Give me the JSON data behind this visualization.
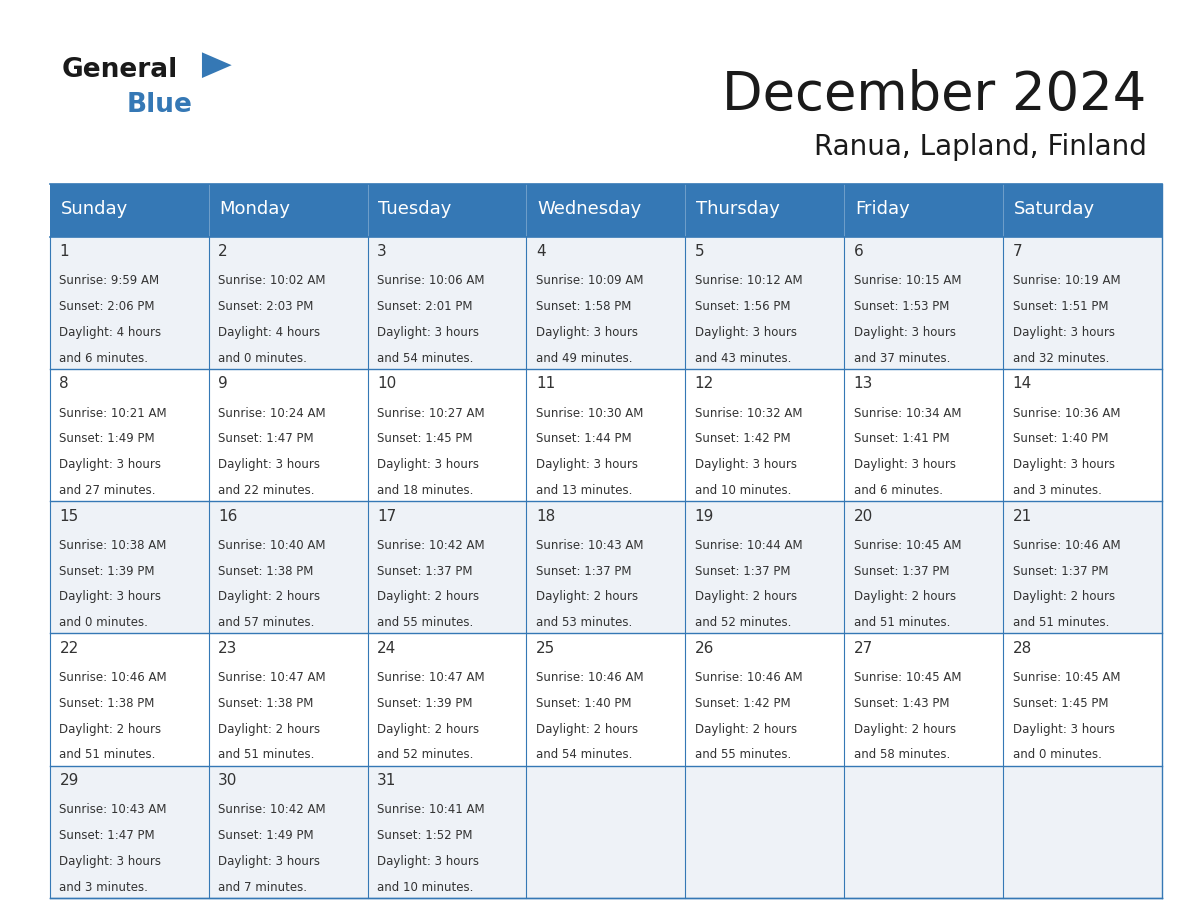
{
  "title": "December 2024",
  "subtitle": "Ranua, Lapland, Finland",
  "header_color": "#3578b5",
  "header_text_color": "#ffffff",
  "row_bg_odd": "#eef2f7",
  "row_bg_even": "#ffffff",
  "border_color": "#3578b5",
  "text_color": "#333333",
  "days_of_week": [
    "Sunday",
    "Monday",
    "Tuesday",
    "Wednesday",
    "Thursday",
    "Friday",
    "Saturday"
  ],
  "weeks": [
    [
      {
        "day": 1,
        "sunrise": "9:59 AM",
        "sunset": "2:06 PM",
        "daylight": "4 hours and 6 minutes."
      },
      {
        "day": 2,
        "sunrise": "10:02 AM",
        "sunset": "2:03 PM",
        "daylight": "4 hours and 0 minutes."
      },
      {
        "day": 3,
        "sunrise": "10:06 AM",
        "sunset": "2:01 PM",
        "daylight": "3 hours and 54 minutes."
      },
      {
        "day": 4,
        "sunrise": "10:09 AM",
        "sunset": "1:58 PM",
        "daylight": "3 hours and 49 minutes."
      },
      {
        "day": 5,
        "sunrise": "10:12 AM",
        "sunset": "1:56 PM",
        "daylight": "3 hours and 43 minutes."
      },
      {
        "day": 6,
        "sunrise": "10:15 AM",
        "sunset": "1:53 PM",
        "daylight": "3 hours and 37 minutes."
      },
      {
        "day": 7,
        "sunrise": "10:19 AM",
        "sunset": "1:51 PM",
        "daylight": "3 hours and 32 minutes."
      }
    ],
    [
      {
        "day": 8,
        "sunrise": "10:21 AM",
        "sunset": "1:49 PM",
        "daylight": "3 hours and 27 minutes."
      },
      {
        "day": 9,
        "sunrise": "10:24 AM",
        "sunset": "1:47 PM",
        "daylight": "3 hours and 22 minutes."
      },
      {
        "day": 10,
        "sunrise": "10:27 AM",
        "sunset": "1:45 PM",
        "daylight": "3 hours and 18 minutes."
      },
      {
        "day": 11,
        "sunrise": "10:30 AM",
        "sunset": "1:44 PM",
        "daylight": "3 hours and 13 minutes."
      },
      {
        "day": 12,
        "sunrise": "10:32 AM",
        "sunset": "1:42 PM",
        "daylight": "3 hours and 10 minutes."
      },
      {
        "day": 13,
        "sunrise": "10:34 AM",
        "sunset": "1:41 PM",
        "daylight": "3 hours and 6 minutes."
      },
      {
        "day": 14,
        "sunrise": "10:36 AM",
        "sunset": "1:40 PM",
        "daylight": "3 hours and 3 minutes."
      }
    ],
    [
      {
        "day": 15,
        "sunrise": "10:38 AM",
        "sunset": "1:39 PM",
        "daylight": "3 hours and 0 minutes."
      },
      {
        "day": 16,
        "sunrise": "10:40 AM",
        "sunset": "1:38 PM",
        "daylight": "2 hours and 57 minutes."
      },
      {
        "day": 17,
        "sunrise": "10:42 AM",
        "sunset": "1:37 PM",
        "daylight": "2 hours and 55 minutes."
      },
      {
        "day": 18,
        "sunrise": "10:43 AM",
        "sunset": "1:37 PM",
        "daylight": "2 hours and 53 minutes."
      },
      {
        "day": 19,
        "sunrise": "10:44 AM",
        "sunset": "1:37 PM",
        "daylight": "2 hours and 52 minutes."
      },
      {
        "day": 20,
        "sunrise": "10:45 AM",
        "sunset": "1:37 PM",
        "daylight": "2 hours and 51 minutes."
      },
      {
        "day": 21,
        "sunrise": "10:46 AM",
        "sunset": "1:37 PM",
        "daylight": "2 hours and 51 minutes."
      }
    ],
    [
      {
        "day": 22,
        "sunrise": "10:46 AM",
        "sunset": "1:38 PM",
        "daylight": "2 hours and 51 minutes."
      },
      {
        "day": 23,
        "sunrise": "10:47 AM",
        "sunset": "1:38 PM",
        "daylight": "2 hours and 51 minutes."
      },
      {
        "day": 24,
        "sunrise": "10:47 AM",
        "sunset": "1:39 PM",
        "daylight": "2 hours and 52 minutes."
      },
      {
        "day": 25,
        "sunrise": "10:46 AM",
        "sunset": "1:40 PM",
        "daylight": "2 hours and 54 minutes."
      },
      {
        "day": 26,
        "sunrise": "10:46 AM",
        "sunset": "1:42 PM",
        "daylight": "2 hours and 55 minutes."
      },
      {
        "day": 27,
        "sunrise": "10:45 AM",
        "sunset": "1:43 PM",
        "daylight": "2 hours and 58 minutes."
      },
      {
        "day": 28,
        "sunrise": "10:45 AM",
        "sunset": "1:45 PM",
        "daylight": "3 hours and 0 minutes."
      }
    ],
    [
      {
        "day": 29,
        "sunrise": "10:43 AM",
        "sunset": "1:47 PM",
        "daylight": "3 hours and 3 minutes."
      },
      {
        "day": 30,
        "sunrise": "10:42 AM",
        "sunset": "1:49 PM",
        "daylight": "3 hours and 7 minutes."
      },
      {
        "day": 31,
        "sunrise": "10:41 AM",
        "sunset": "1:52 PM",
        "daylight": "3 hours and 10 minutes."
      },
      null,
      null,
      null,
      null
    ]
  ],
  "logo_general_color": "#1a1a1a",
  "logo_blue_color": "#3578b5",
  "logo_triangle_color": "#3578b5",
  "title_fontsize": 38,
  "subtitle_fontsize": 20,
  "header_fontsize": 13,
  "day_num_fontsize": 11,
  "cell_fontsize": 8.5
}
